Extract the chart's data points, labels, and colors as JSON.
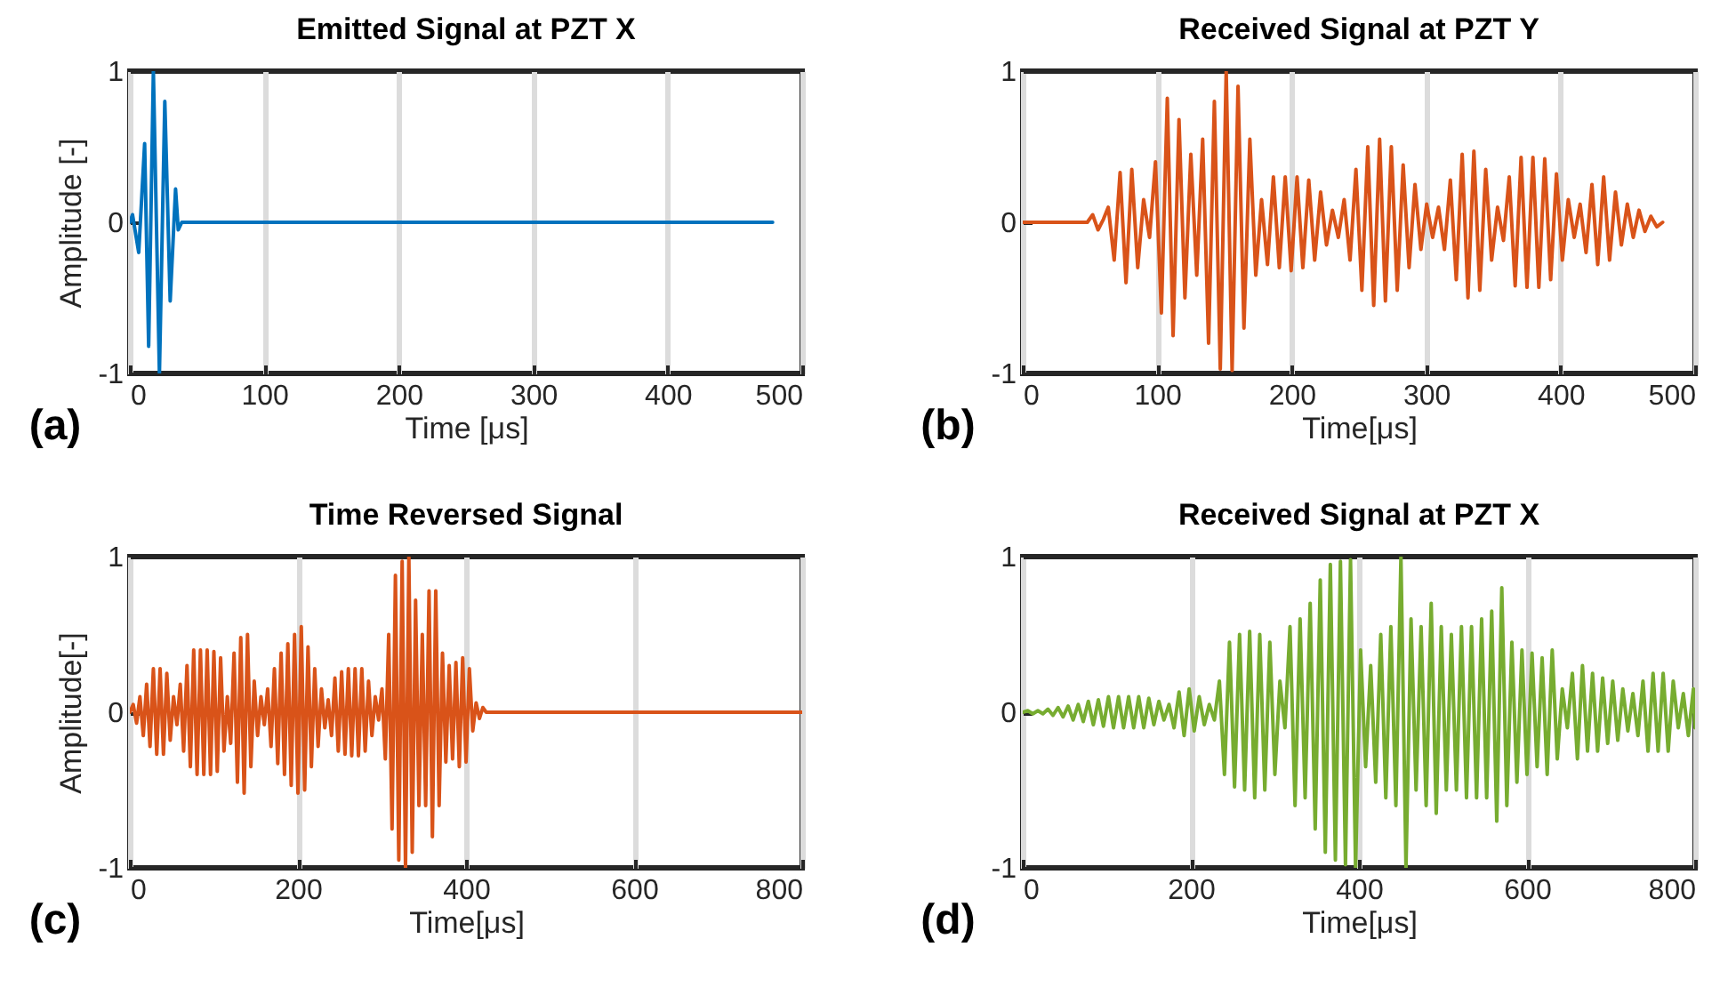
{
  "chart_data": [
    {
      "type": "line",
      "title": "Emitted Signal at PZT X",
      "xlabel": "Time [μs]",
      "ylabel": "Amplitude [-]",
      "xlim": [
        0,
        500
      ],
      "xticks": [
        0,
        100,
        200,
        300,
        400,
        500
      ],
      "ylim": [
        -1,
        1
      ],
      "yticks": [
        -1,
        0,
        1
      ],
      "grid": "x",
      "annotations": [
        "(a)"
      ],
      "series": [
        {
          "color": "#0072bd",
          "x": [
            0,
            2,
            6.6,
            11,
            14,
            17.5,
            22,
            26,
            30,
            34,
            36,
            38.6,
            478
          ],
          "values": [
            0,
            0.05,
            -0.2,
            0.52,
            -0.82,
            1,
            -1,
            0.8,
            -0.52,
            0.22,
            -0.05,
            0,
            0
          ]
        }
      ]
    },
    {
      "type": "line",
      "title": "Received Signal at PZT Y",
      "xlabel": "Time[μs]",
      "xlim": [
        0,
        500
      ],
      "xticks": [
        0,
        100,
        200,
        300,
        400,
        500
      ],
      "ylim": [
        -1,
        1
      ],
      "yticks": [
        -1,
        0,
        1
      ],
      "grid": "x",
      "annotations": [
        "(b)"
      ],
      "series": [
        {
          "color": "#d95319",
          "x": [
            0,
            48,
            52,
            56,
            60,
            63.6,
            68.0,
            72.4,
            76.8,
            81.1,
            85.5,
            89.9,
            94.3,
            98.7,
            103.1,
            107.5,
            111.8,
            116.2,
            120.6,
            125.0,
            129.4,
            133.8,
            138.2,
            142.5,
            146.9,
            151.3,
            155.7,
            160.1,
            164.5,
            168.9,
            173.3,
            177.6,
            182.0,
            186.4,
            190.8,
            195.2,
            199.6,
            204.0,
            208.3,
            212.7,
            217.1,
            221.5,
            225.9,
            230.3,
            234.7,
            239.0,
            243.4,
            247.8,
            252.2,
            256.6,
            261.0,
            265.4,
            269.7,
            274.1,
            278.5,
            282.9,
            287.3,
            291.7,
            296.1,
            300.4,
            304.8,
            309.2,
            313.6,
            318.0,
            322.4,
            326.8,
            331.1,
            335.5,
            339.9,
            344.3,
            348.7,
            353.1,
            357.5,
            361.8,
            366.2,
            370.6,
            375.0,
            379.4,
            383.8,
            388.2,
            392.6,
            396.9,
            401.3,
            405.7,
            410.1,
            414.5,
            418.9,
            423.3,
            427.6,
            432.0,
            436.4,
            440.8,
            445.2,
            449.6,
            454.0,
            458.3,
            462.7,
            467.1,
            471.5,
            475.9
          ],
          "values": [
            0,
            0,
            0.05,
            -0.05,
            0.02,
            0.1,
            -0.25,
            0.33,
            -0.4,
            0.35,
            -0.3,
            0.15,
            -0.1,
            0.4,
            -0.6,
            0.82,
            -0.75,
            0.68,
            -0.5,
            0.45,
            -0.35,
            0.55,
            -0.8,
            0.8,
            -0.97,
            1,
            -0.98,
            0.9,
            -0.7,
            0.55,
            -0.35,
            0.15,
            -0.28,
            0.3,
            -0.3,
            0.3,
            -0.32,
            0.3,
            -0.3,
            0.28,
            -0.25,
            0.2,
            -0.15,
            0.08,
            -0.1,
            0.15,
            -0.25,
            0.35,
            -0.45,
            0.5,
            -0.55,
            0.55,
            -0.52,
            0.5,
            -0.45,
            0.38,
            -0.3,
            0.25,
            -0.18,
            0.12,
            -0.1,
            0.1,
            -0.18,
            0.28,
            -0.38,
            0.45,
            -0.5,
            0.47,
            -0.45,
            0.35,
            -0.25,
            0.1,
            -0.12,
            0.3,
            -0.42,
            0.43,
            -0.43,
            0.43,
            -0.43,
            0.42,
            -0.38,
            0.32,
            -0.25,
            0.15,
            -0.1,
            0.12,
            -0.2,
            0.25,
            -0.28,
            0.3,
            -0.25,
            0.2,
            -0.15,
            0.12,
            -0.1,
            0.08,
            -0.06,
            0.04,
            -0.03,
            0
          ]
        }
      ]
    },
    {
      "type": "line",
      "title": "Time Reversed Signal",
      "xlabel": "Time[μs]",
      "ylabel": "Amplitude[-]",
      "xlim": [
        0,
        800
      ],
      "xticks": [
        0,
        200,
        400,
        600,
        800
      ],
      "ylim": [
        -1,
        1
      ],
      "yticks": [
        -1,
        0,
        1
      ],
      "grid": "x",
      "annotations": [
        "(c)"
      ],
      "series": [
        {
          "color": "#d95319",
          "x": [
            0,
            4,
            8,
            12,
            16,
            20,
            24,
            28,
            32,
            36,
            40,
            44,
            48,
            52,
            56,
            60,
            64,
            68,
            72,
            76,
            80,
            84,
            88,
            92,
            96,
            100,
            104,
            108,
            112,
            116,
            120,
            124,
            128,
            132,
            136,
            140,
            144,
            148,
            152,
            156,
            160,
            164,
            168,
            172,
            176,
            180,
            184,
            188,
            192,
            196,
            200,
            204,
            208,
            212,
            216,
            220,
            224,
            228,
            232,
            236,
            240,
            244,
            248,
            252,
            256,
            260,
            264,
            268,
            272,
            276,
            280,
            284,
            288,
            292,
            296,
            300,
            304,
            308,
            312,
            316,
            320,
            324,
            328,
            332,
            336,
            340,
            344,
            348,
            352,
            356,
            360,
            364,
            368,
            372,
            376,
            380,
            384,
            388,
            392,
            396,
            400,
            404,
            408,
            412,
            416,
            420,
            424,
            800
          ],
          "values": [
            0,
            0.05,
            -0.07,
            0.1,
            -0.15,
            0.18,
            -0.22,
            0.28,
            -0.27,
            0.28,
            -0.27,
            0.25,
            -0.18,
            0.1,
            -0.08,
            0.18,
            -0.25,
            0.3,
            -0.35,
            0.4,
            -0.4,
            0.4,
            -0.4,
            0.4,
            -0.4,
            0.39,
            -0.38,
            0.35,
            -0.25,
            0.1,
            -0.2,
            0.38,
            -0.45,
            0.48,
            -0.52,
            0.5,
            -0.35,
            0.2,
            -0.15,
            0.1,
            -0.08,
            0.15,
            -0.22,
            0.28,
            -0.33,
            0.38,
            -0.4,
            0.44,
            -0.47,
            0.5,
            -0.52,
            0.55,
            -0.5,
            0.42,
            -0.35,
            0.28,
            -0.22,
            0.15,
            -0.1,
            0.08,
            -0.15,
            0.22,
            -0.25,
            0.26,
            -0.27,
            0.28,
            -0.28,
            0.28,
            -0.28,
            0.28,
            -0.25,
            0.2,
            -0.15,
            0.1,
            -0.05,
            0.15,
            -0.3,
            0.5,
            -0.75,
            0.88,
            -0.95,
            0.97,
            -1,
            1,
            -0.9,
            0.72,
            -0.6,
            0.5,
            -0.6,
            0.78,
            -0.8,
            0.78,
            -0.6,
            0.38,
            -0.32,
            0.3,
            -0.3,
            0.32,
            -0.35,
            0.35,
            -0.32,
            0.28,
            -0.12,
            0.06,
            -0.04,
            0.03,
            0,
            0
          ]
        }
      ]
    },
    {
      "type": "line",
      "title": "Received Signal at PZT X",
      "xlabel": "Time[μs]",
      "xlim": [
        0,
        800
      ],
      "xticks": [
        0,
        200,
        400,
        600,
        800
      ],
      "ylim": [
        -1,
        1
      ],
      "yticks": [
        -1,
        0,
        1
      ],
      "grid": "x",
      "annotations": [
        "(d)"
      ],
      "series": [
        {
          "color": "#77ac30",
          "x": [
            0,
            6,
            12,
            18,
            24,
            30,
            36,
            42,
            48,
            54,
            60,
            66,
            72,
            78,
            84,
            90,
            96,
            102,
            108,
            114,
            120,
            126,
            132,
            138,
            144,
            150,
            156,
            162,
            168,
            174,
            180,
            186,
            192,
            198,
            204,
            210,
            216,
            222,
            228,
            234,
            240,
            246,
            252,
            258,
            264,
            270,
            276,
            282,
            288,
            294,
            300,
            306,
            312,
            318,
            324,
            330,
            336,
            342,
            348,
            354,
            360,
            366,
            372,
            378,
            384,
            390,
            396,
            402,
            408,
            414,
            420,
            426,
            432,
            438,
            444,
            450,
            456,
            462,
            468,
            474,
            480,
            486,
            492,
            498,
            504,
            510,
            516,
            522,
            528,
            534,
            540,
            546,
            552,
            558,
            564,
            570,
            576,
            582,
            588,
            594,
            600,
            606,
            612,
            618,
            624,
            630,
            636,
            642,
            648,
            654,
            660,
            666,
            672,
            678,
            684,
            690,
            696,
            702,
            708,
            714,
            720,
            726,
            732,
            738,
            744,
            750,
            756,
            762,
            768,
            774,
            780,
            786,
            792,
            798,
            800
          ],
          "values": [
            0,
            0.01,
            -0.01,
            0.01,
            -0.01,
            0.02,
            -0.02,
            0.03,
            -0.03,
            0.04,
            -0.05,
            0.05,
            -0.06,
            0.07,
            -0.08,
            0.08,
            -0.09,
            0.1,
            -0.1,
            0.1,
            -0.1,
            0.1,
            -0.1,
            0.1,
            -0.1,
            0.09,
            -0.08,
            0.07,
            -0.05,
            0.05,
            -0.1,
            0.13,
            -0.15,
            0.15,
            -0.12,
            0.1,
            -0.08,
            0.05,
            -0.05,
            0.2,
            -0.4,
            0.45,
            -0.48,
            0.5,
            -0.5,
            0.52,
            -0.55,
            0.5,
            -0.5,
            0.45,
            -0.4,
            0.2,
            -0.1,
            0.55,
            -0.6,
            0.6,
            -0.55,
            0.7,
            -0.75,
            0.85,
            -0.9,
            0.95,
            -0.95,
            0.97,
            -0.98,
            0.98,
            -1,
            0.4,
            -0.35,
            0.3,
            -0.45,
            0.5,
            -0.55,
            0.55,
            -0.6,
            1,
            -1,
            0.6,
            -0.5,
            0.55,
            -0.6,
            0.7,
            -0.65,
            0.55,
            -0.5,
            0.5,
            -0.5,
            0.55,
            -0.55,
            0.55,
            -0.55,
            0.6,
            -0.55,
            0.65,
            -0.7,
            0.8,
            -0.6,
            0.45,
            -0.45,
            0.4,
            -0.4,
            0.38,
            -0.35,
            0.35,
            -0.4,
            0.4,
            -0.3,
            0.15,
            -0.1,
            0.25,
            -0.3,
            0.3,
            -0.25,
            0.25,
            -0.25,
            0.22,
            -0.2,
            0.2,
            -0.18,
            0.15,
            -0.12,
            0.12,
            -0.15,
            0.2,
            -0.25,
            0.25,
            -0.25,
            0.25,
            -0.25,
            0.2,
            -0.1,
            0.12,
            -0.15,
            0.15,
            -0.1
          ]
        }
      ]
    }
  ]
}
